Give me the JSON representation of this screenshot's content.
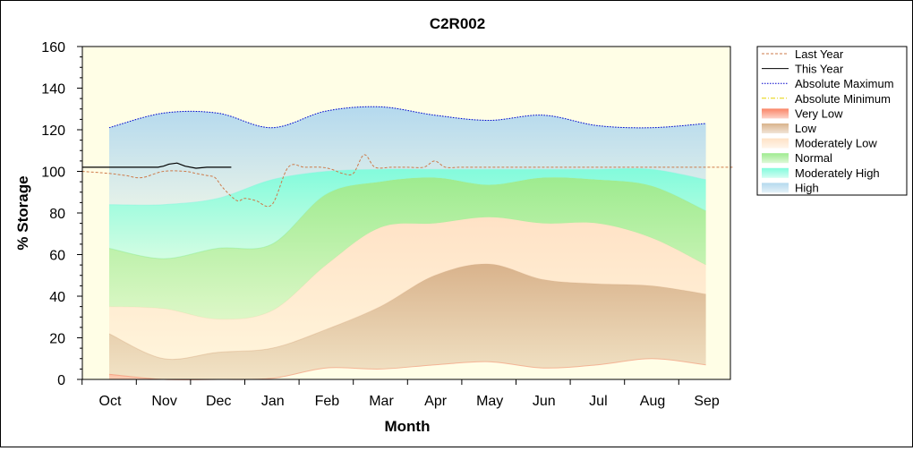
{
  "chart_data": {
    "type": "area",
    "title": "C2R002",
    "xlabel": "Month",
    "ylabel": "% Storage",
    "ylim": [
      0,
      160
    ],
    "yticks": [
      0,
      20,
      40,
      60,
      80,
      100,
      120,
      140,
      160
    ],
    "categories": [
      "Oct",
      "Nov",
      "Dec",
      "Jan",
      "Feb",
      "Mar",
      "Apr",
      "May",
      "Jun",
      "Jul",
      "Aug",
      "Sep"
    ],
    "x_positions": [
      0,
      1,
      2,
      3,
      4,
      5,
      6,
      7,
      8,
      9,
      10,
      11
    ],
    "plot_background": "#fffee6",
    "legend_position": "right",
    "bands": [
      {
        "name": "Very Low",
        "color": "#fa8466",
        "lower": [
          0,
          0,
          0,
          0.5,
          5.5,
          5,
          7,
          8.5,
          5.5,
          7,
          10,
          7
        ],
        "upper": [
          2.5,
          0,
          0,
          0.5,
          5.5,
          5,
          7,
          8.5,
          5.5,
          7,
          10,
          7
        ]
      },
      {
        "name": "Low",
        "color": "#d9b38c",
        "lower": [
          2.5,
          0,
          0,
          0.5,
          5.5,
          5,
          7,
          8.5,
          5.5,
          7,
          10,
          7
        ],
        "upper": [
          22,
          10,
          13,
          15,
          24,
          35,
          50,
          55.5,
          48,
          46,
          45,
          41
        ]
      },
      {
        "name": "Moderately Low",
        "color": "#ffe2c6",
        "lower": [
          22,
          10,
          13,
          15,
          24,
          35,
          50,
          55.5,
          48,
          46,
          45,
          41
        ],
        "upper": [
          35,
          34,
          29,
          33,
          55,
          73,
          75,
          78,
          75,
          75,
          68,
          55
        ]
      },
      {
        "name": "Normal",
        "color": "#9eeb8f",
        "lower": [
          35,
          34,
          29,
          33,
          55,
          73,
          75,
          78,
          75,
          75,
          68,
          55
        ],
        "upper": [
          63,
          58,
          63,
          65,
          89,
          95,
          97,
          93.5,
          97,
          96,
          93,
          81
        ]
      },
      {
        "name": "Moderately High",
        "color": "#82fbdc",
        "lower": [
          63,
          58,
          63,
          65,
          89,
          95,
          97,
          93.5,
          97,
          96,
          93,
          81
        ],
        "upper": [
          84,
          84,
          87,
          96,
          100,
          101,
          101,
          101,
          101,
          101,
          101,
          96
        ]
      },
      {
        "name": "High",
        "color": "#b4d9ee",
        "lower": [
          84,
          84,
          87,
          96,
          100,
          101,
          101,
          101,
          101,
          101,
          101,
          96
        ],
        "upper": [
          121,
          128,
          128,
          121,
          129,
          131,
          127,
          124.5,
          127,
          122,
          121,
          123
        ]
      }
    ],
    "series": [
      {
        "name": "Absolute Maximum",
        "color": "#0000cc",
        "style": "dotted",
        "x": [
          0,
          1,
          2,
          3,
          4,
          5,
          6,
          7,
          8,
          9,
          10,
          11
        ],
        "y": [
          121,
          128,
          128,
          121,
          129,
          131,
          127,
          124.5,
          127,
          122,
          121,
          123
        ]
      },
      {
        "name": "Absolute Minimum",
        "color": "#e6d200",
        "style": "dashdot",
        "x": [
          0,
          11
        ],
        "y": [
          0,
          0
        ]
      },
      {
        "name": "Last Year",
        "color": "#cd7a4a",
        "style": "dashed",
        "x": [
          -0.5,
          0,
          0.3,
          0.6,
          1.0,
          1.4,
          1.6,
          1.8,
          1.95,
          2.1,
          2.35,
          2.5,
          2.7,
          3.0,
          3.3,
          3.6,
          3.9,
          4.1,
          4.3,
          4.5,
          4.7,
          4.9,
          5.2,
          5.5,
          5.8,
          6.0,
          6.2,
          6.5,
          7,
          8,
          9,
          10,
          11.5
        ],
        "y": [
          100,
          99,
          98,
          97,
          100,
          100,
          99,
          98,
          97,
          92,
          86,
          87,
          86,
          84,
          102,
          102,
          102,
          101,
          99,
          99,
          108,
          102,
          102,
          102,
          102,
          105,
          102,
          102,
          102,
          102,
          102,
          102,
          102
        ]
      },
      {
        "name": "This Year",
        "color": "#000000",
        "style": "solid",
        "x": [
          -0.5,
          0,
          0.3,
          0.65,
          0.9,
          1.0,
          1.1,
          1.25,
          1.4,
          1.6,
          1.8,
          2.0,
          2.25
        ],
        "y": [
          102,
          102,
          102,
          102,
          102,
          102.5,
          103.5,
          104,
          102.5,
          101.5,
          102,
          102,
          102
        ]
      }
    ],
    "legend": [
      "Last Year",
      "This Year",
      "Absolute Maximum",
      "Absolute Minimum",
      "Very Low",
      "Low",
      "Moderately Low",
      "Normal",
      "Moderately High",
      "High"
    ]
  }
}
